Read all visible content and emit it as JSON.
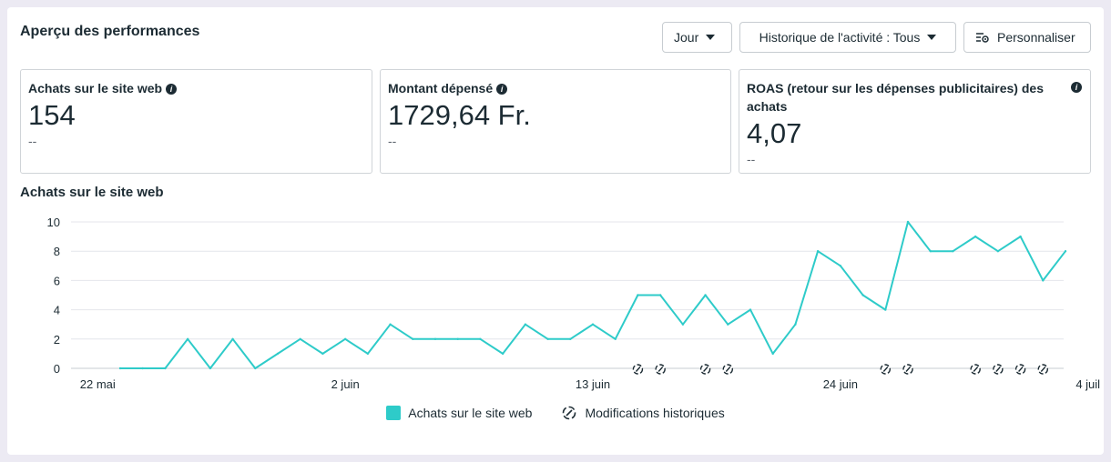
{
  "header": {
    "title": "Aperçu des performances",
    "day_label": "Jour",
    "history_label": "Historique de l'activité : Tous",
    "customize_label": "Personnaliser"
  },
  "metrics": [
    {
      "label": "Achats sur le site web",
      "value": "154",
      "delta": "--"
    },
    {
      "label": "Montant dépensé",
      "value": "1729,64 Fr.",
      "delta": "--"
    },
    {
      "label": "ROAS (retour sur les dépenses publicitaires) des achats",
      "value": "4,07",
      "delta": "--"
    }
  ],
  "chart_title": "Achats sur le site web",
  "chart_data": {
    "type": "line",
    "x_tick_labels": [
      "22 mai",
      "2 juin",
      "13 juin",
      "24 juin",
      "4 juil"
    ],
    "x_start": "23 mai",
    "x_end": "4 juil",
    "y_ticks": [
      0,
      2,
      4,
      6,
      8,
      10
    ],
    "ylim": [
      0,
      10
    ],
    "series": [
      {
        "name": "Achats sur le site web",
        "color": "#2ecbc9",
        "values": [
          0,
          0,
          0,
          2,
          0,
          2,
          0,
          1,
          2,
          1,
          2,
          1,
          3,
          2,
          2,
          2,
          2,
          1,
          3,
          2,
          2,
          3,
          2,
          5,
          5,
          3,
          5,
          3,
          4,
          1,
          3,
          8,
          7,
          5,
          4,
          10,
          8,
          8,
          9,
          8,
          9,
          6,
          8
        ]
      }
    ],
    "history_marker_days": [
      23,
      24,
      26,
      27,
      34,
      35,
      38,
      39,
      40,
      41
    ],
    "grid": true
  },
  "legend": {
    "series_label": "Achats sur le site web",
    "history_label": "Modifications historiques"
  }
}
